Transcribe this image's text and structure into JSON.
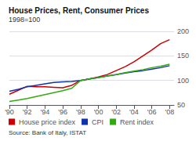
{
  "chart_data": {
    "type": "line",
    "title": "House Prices, Rent, Consumer Prices",
    "subtitle": "1998=100",
    "annotations": [
      "Source: Bank of Italy, ISTAT"
    ],
    "x": [
      1990,
      1991,
      1992,
      1993,
      1994,
      1995,
      1996,
      1997,
      1998,
      1999,
      2000,
      2001,
      2002,
      2003,
      2004,
      2005,
      2006,
      2007,
      2008
    ],
    "series": [
      {
        "name": "House price index",
        "color": "#cc0000",
        "values": [
          72,
          80,
          88,
          87,
          87,
          86,
          85,
          90,
          100,
          103,
          107,
          112,
          120,
          128,
          138,
          150,
          162,
          175,
          183
        ]
      },
      {
        "name": "CPI",
        "color": "#1133aa",
        "values": [
          78,
          82,
          87,
          90,
          93,
          96,
          97,
          98,
          100,
          103,
          106,
          109,
          112,
          115,
          118,
          120,
          123,
          126,
          130
        ]
      },
      {
        "name": "Rent index",
        "color": "#33aa11",
        "values": [
          57,
          60,
          63,
          67,
          71,
          75,
          79,
          84,
          100,
          103,
          106,
          109,
          112,
          116,
          119,
          122,
          126,
          129,
          133
        ]
      }
    ],
    "xlim": [
      1990,
      2008.5
    ],
    "xticks": [
      {
        "value": 1990,
        "label": "'90"
      },
      {
        "value": 1992,
        "label": "'92"
      },
      {
        "value": 1994,
        "label": "'94"
      },
      {
        "value": 1996,
        "label": "'96"
      },
      {
        "value": 1998,
        "label": "'98"
      },
      {
        "value": 2000,
        "label": "'00"
      },
      {
        "value": 2002,
        "label": "'02"
      },
      {
        "value": 2004,
        "label": "'04"
      },
      {
        "value": 2006,
        "label": "'06"
      },
      {
        "value": 2008,
        "label": "'08"
      }
    ],
    "ylim": [
      50,
      200
    ],
    "yticks": [
      50,
      100,
      150,
      200
    ],
    "grid": true,
    "legend": "bottom"
  }
}
